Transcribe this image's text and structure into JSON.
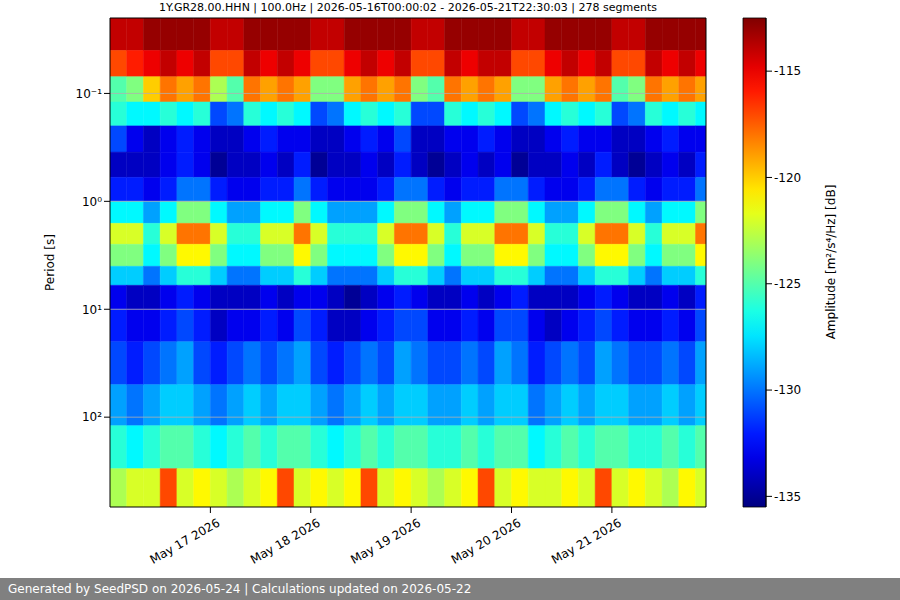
{
  "chart_data": {
    "type": "heatmap",
    "title": "1Y.GR28.00.HHN | 100.0Hz | 2026-05-16T00:00:02 - 2026-05-21T22:30:03 | 278 segments",
    "y_label": "Period [s]",
    "colorbar_label": "Amplitude [m²/s⁴/Hz] [dB]",
    "annotations": [
      "Generated by SeedPSD on 2026-05-24 | Calculations updated on 2026-05-22"
    ],
    "log": "y",
    "grid": true,
    "xlim": [
      0,
      142.5
    ],
    "xticks": [
      {
        "value": 24,
        "label": "May 17 2026"
      },
      {
        "value": 48,
        "label": "May 18 2026"
      },
      {
        "value": 72,
        "label": "May 19 2026"
      },
      {
        "value": 96,
        "label": "May 20 2026"
      },
      {
        "value": 120,
        "label": "May 21 2026"
      }
    ],
    "ylim": [
      0.02,
      680
    ],
    "yticks": [
      {
        "value": 0.1,
        "label": "10⁻¹"
      },
      {
        "value": 1,
        "label": "10⁰"
      },
      {
        "value": 10,
        "label": "10¹"
      },
      {
        "value": 100,
        "label": "10²"
      }
    ],
    "clim": [
      -135.5,
      -112.5
    ],
    "cticks": [
      -115,
      -120,
      -125,
      -130,
      -135
    ],
    "x_edges": [
      0,
      4,
      8,
      12,
      16,
      20,
      24,
      28,
      32,
      36,
      40,
      44,
      48,
      52,
      56,
      60,
      64,
      68,
      72,
      76,
      80,
      84,
      88,
      92,
      96,
      100,
      104,
      108,
      112,
      116,
      120,
      124,
      128,
      132,
      136,
      140,
      142.5
    ],
    "y_edges": [
      0.02,
      0.04,
      0.07,
      0.12,
      0.2,
      0.35,
      0.6,
      1,
      1.6,
      2.5,
      4,
      6,
      10,
      20,
      50,
      120,
      300,
      680
    ],
    "cells": [
      [
        -114,
        -114,
        -113,
        -113,
        -113,
        -113,
        -114,
        -114,
        -113,
        -113,
        -113,
        -113,
        -114,
        -114,
        -113,
        -113,
        -113,
        -113,
        -114,
        -114,
        -113,
        -113,
        -113,
        -113,
        -114,
        -114,
        -113,
        -113,
        -113,
        -113,
        -114,
        -114,
        -113,
        -113,
        -113,
        -113
      ],
      [
        -117,
        -116,
        -115,
        -114,
        -115,
        -114,
        -117,
        -117,
        -114,
        -115,
        -114,
        -115,
        -117,
        -117,
        -115,
        -114,
        -115,
        -114,
        -117,
        -117,
        -114,
        -115,
        -114,
        -114,
        -117,
        -117,
        -115,
        -114,
        -115,
        -114,
        -117,
        -117,
        -114,
        -115,
        -114,
        -115
      ],
      [
        -125,
        -124,
        -120,
        -118,
        -119,
        -118,
        -123,
        -125,
        -118,
        -119,
        -118,
        -119,
        -124,
        -124,
        -119,
        -118,
        -119,
        -118,
        -124,
        -125,
        -118,
        -119,
        -118,
        -119,
        -124,
        -124,
        -119,
        -118,
        -119,
        -118,
        -125,
        -124,
        -118,
        -119,
        -118,
        -119
      ],
      [
        -126,
        -127,
        -127,
        -126,
        -127,
        -126,
        -131,
        -130,
        -126,
        -127,
        -126,
        -127,
        -131,
        -130,
        -127,
        -126,
        -127,
        -126,
        -131,
        -131,
        -126,
        -127,
        -126,
        -127,
        -131,
        -130,
        -127,
        -126,
        -127,
        -126,
        -131,
        -130,
        -126,
        -127,
        -126,
        -127
      ],
      [
        -131,
        -133,
        -134,
        -133,
        -132,
        -133,
        -134,
        -134,
        -133,
        -132,
        -133,
        -133,
        -134,
        -134,
        -133,
        -132,
        -133,
        -131,
        -134,
        -134,
        -133,
        -133,
        -132,
        -133,
        -134,
        -134,
        -133,
        -132,
        -133,
        -133,
        -134,
        -134,
        -133,
        -132,
        -133,
        -133
      ],
      [
        -134,
        -134,
        -134,
        -133,
        -132,
        -133,
        -135,
        -134,
        -134,
        -133,
        -134,
        -132,
        -135,
        -134,
        -134,
        -133,
        -134,
        -132,
        -134,
        -135,
        -134,
        -133,
        -134,
        -133,
        -135,
        -134,
        -134,
        -133,
        -134,
        -132,
        -134,
        -135,
        -134,
        -133,
        -134,
        -132
      ],
      [
        -132,
        -132,
        -133,
        -132,
        -130,
        -130,
        -132,
        -133,
        -133,
        -132,
        -132,
        -130,
        -132,
        -133,
        -133,
        -133,
        -132,
        -130,
        -130,
        -132,
        -133,
        -132,
        -132,
        -130,
        -130,
        -132,
        -133,
        -133,
        -132,
        -130,
        -130,
        -132,
        -133,
        -132,
        -132,
        -130
      ],
      [
        -127,
        -127,
        -129,
        -127,
        -124,
        -124,
        -127,
        -129,
        -129,
        -127,
        -127,
        -124,
        -127,
        -129,
        -129,
        -129,
        -127,
        -124,
        -124,
        -127,
        -129,
        -127,
        -127,
        -124,
        -124,
        -127,
        -129,
        -129,
        -127,
        -124,
        -124,
        -127,
        -129,
        -127,
        -127,
        -124
      ],
      [
        -122,
        -122,
        -126,
        -122,
        -118,
        -118,
        -122,
        -126,
        -126,
        -122,
        -122,
        -118,
        -122,
        -126,
        -126,
        -126,
        -122,
        -118,
        -118,
        -122,
        -126,
        -122,
        -122,
        -118,
        -118,
        -122,
        -126,
        -126,
        -122,
        -118,
        -118,
        -122,
        -126,
        -122,
        -122,
        -118
      ],
      [
        -124,
        -124,
        -127,
        -124,
        -121,
        -121,
        -124,
        -127,
        -127,
        -124,
        -124,
        -121,
        -124,
        -127,
        -127,
        -127,
        -124,
        -121,
        -121,
        -124,
        -127,
        -124,
        -124,
        -121,
        -121,
        -124,
        -127,
        -127,
        -124,
        -121,
        -121,
        -124,
        -127,
        -124,
        -124,
        -121
      ],
      [
        -128,
        -128,
        -130,
        -128,
        -126,
        -126,
        -128,
        -130,
        -130,
        -128,
        -128,
        -126,
        -128,
        -130,
        -130,
        -130,
        -128,
        -126,
        -126,
        -128,
        -130,
        -128,
        -128,
        -126,
        -126,
        -128,
        -130,
        -130,
        -128,
        -126,
        -126,
        -128,
        -130,
        -128,
        -128,
        -126
      ],
      [
        -133,
        -134,
        -134,
        -133,
        -132,
        -133,
        -134,
        -134,
        -134,
        -133,
        -134,
        -133,
        -133,
        -134,
        -135,
        -134,
        -133,
        -132,
        -133,
        -134,
        -134,
        -133,
        -134,
        -133,
        -132,
        -134,
        -134,
        -134,
        -133,
        -132,
        -133,
        -134,
        -134,
        -133,
        -134,
        -132
      ],
      [
        -132,
        -133,
        -133,
        -132,
        -131,
        -132,
        -134,
        -133,
        -133,
        -132,
        -133,
        -131,
        -132,
        -134,
        -134,
        -133,
        -132,
        -131,
        -131,
        -133,
        -133,
        -132,
        -133,
        -131,
        -131,
        -133,
        -134,
        -133,
        -132,
        -131,
        -132,
        -133,
        -133,
        -132,
        -133,
        -131
      ],
      [
        -131,
        -132,
        -131,
        -130,
        -129,
        -131,
        -132,
        -131,
        -130,
        -131,
        -130,
        -129,
        -131,
        -132,
        -131,
        -130,
        -131,
        -129,
        -130,
        -131,
        -131,
        -130,
        -131,
        -129,
        -130,
        -132,
        -131,
        -130,
        -131,
        -129,
        -130,
        -131,
        -131,
        -130,
        -131,
        -129
      ],
      [
        -129,
        -130,
        -129,
        -128,
        -128,
        -129,
        -130,
        -129,
        -128,
        -129,
        -128,
        -128,
        -129,
        -130,
        -129,
        -128,
        -129,
        -128,
        -128,
        -129,
        -129,
        -128,
        -129,
        -128,
        -128,
        -130,
        -129,
        -128,
        -129,
        -128,
        -128,
        -129,
        -129,
        -128,
        -129,
        -128
      ],
      [
        -126,
        -127,
        -126,
        -125,
        -125,
        -126,
        -127,
        -126,
        -125,
        -126,
        -125,
        -125,
        -126,
        -127,
        -126,
        -125,
        -126,
        -125,
        -125,
        -126,
        -126,
        -125,
        -126,
        -125,
        -125,
        -127,
        -126,
        -125,
        -126,
        -125,
        -125,
        -126,
        -126,
        -125,
        -126,
        -125
      ],
      [
        -123,
        -122,
        -122,
        -117,
        -122,
        -121,
        -122,
        -123,
        -122,
        -121,
        -117,
        -122,
        -121,
        -122,
        -121,
        -117,
        -122,
        -121,
        -122,
        -123,
        -122,
        -121,
        -117,
        -122,
        -121,
        -122,
        -122,
        -121,
        -122,
        -117,
        -122,
        -121,
        -122,
        -123,
        -121,
        -122
      ]
    ]
  }
}
